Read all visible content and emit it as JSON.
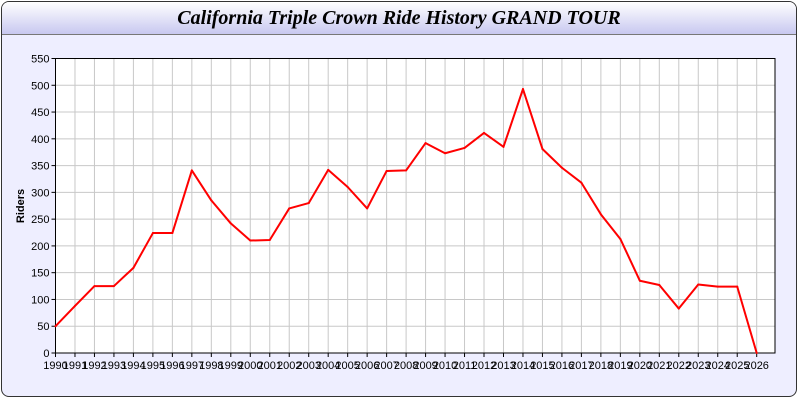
{
  "chart_data": {
    "type": "line",
    "title": "California Triple Crown Ride History GRAND TOUR",
    "xlabel": "",
    "ylabel": "Riders",
    "ylim": [
      0,
      550
    ],
    "yticks": [
      0,
      50,
      100,
      150,
      200,
      250,
      300,
      350,
      400,
      450,
      500,
      550
    ],
    "grid": true,
    "line_color": "#ff0000",
    "x": [
      1990,
      1991,
      1992,
      1993,
      1994,
      1995,
      1996,
      1997,
      1998,
      1999,
      2000,
      2001,
      2002,
      2003,
      2004,
      2005,
      2006,
      2007,
      2008,
      2009,
      2010,
      2011,
      2012,
      2013,
      2014,
      2015,
      2016,
      2017,
      2018,
      2019,
      2020,
      2021,
      2022,
      2023,
      2024,
      2025,
      2026
    ],
    "values": [
      50,
      88,
      125,
      125,
      159,
      224,
      224,
      341,
      285,
      242,
      210,
      211,
      270,
      280,
      342,
      310,
      270,
      340,
      341,
      392,
      373,
      383,
      411,
      385,
      493,
      381,
      346,
      318,
      259,
      213,
      135,
      127,
      83,
      128,
      124,
      124,
      0
    ]
  }
}
